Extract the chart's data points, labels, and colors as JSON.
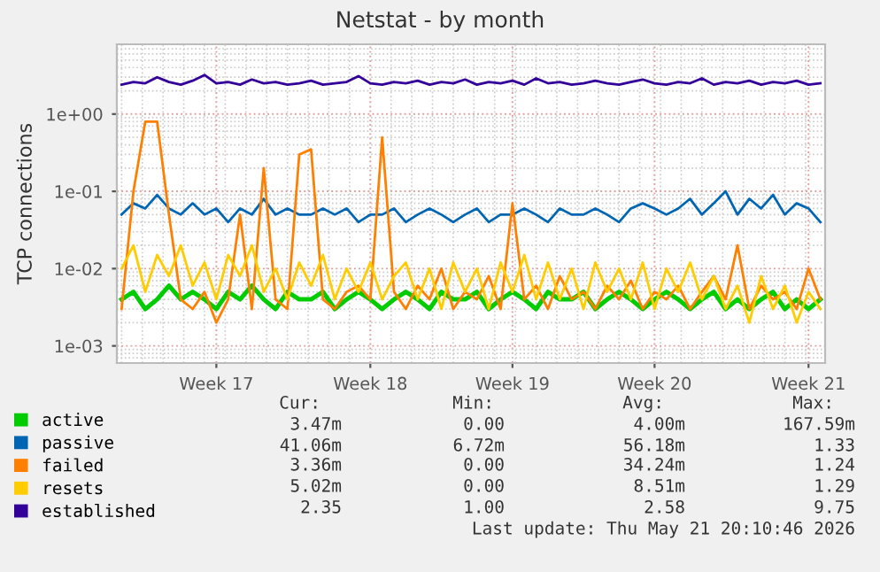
{
  "chart_data": {
    "type": "line",
    "title": "Netstat - by month",
    "ylabel": "TCP connections",
    "log": true,
    "grid": true,
    "legend": "bottom left",
    "marker": "none",
    "line_style": "solid",
    "ylim": [
      0.0006,
      8
    ],
    "yticks": [
      {
        "value": 0.001,
        "label": "1e-03"
      },
      {
        "value": 0.01,
        "label": "1e-02"
      },
      {
        "value": 0.1,
        "label": "1e-01"
      },
      {
        "value": 1,
        "label": "1e+00"
      }
    ],
    "categories": [
      null,
      null,
      null,
      null,
      null,
      null,
      null,
      null,
      "Week 17",
      null,
      null,
      null,
      null,
      null,
      null,
      null,
      null,
      null,
      null,
      null,
      null,
      "Week 18",
      null,
      null,
      null,
      null,
      null,
      null,
      null,
      null,
      null,
      null,
      null,
      "Week 19",
      null,
      null,
      null,
      null,
      null,
      null,
      null,
      null,
      null,
      null,
      null,
      "Week 20",
      null,
      null,
      null,
      null,
      null,
      null,
      null,
      null,
      null,
      null,
      null,
      null,
      "Week 21",
      null
    ],
    "series": [
      {
        "name": "active",
        "color": "#00cc00",
        "values": [
          0.004,
          0.005,
          0.003,
          0.004,
          0.006,
          0.004,
          0.005,
          0.004,
          0.003,
          0.005,
          0.004,
          0.006,
          0.004,
          0.003,
          0.005,
          0.004,
          0.004,
          0.005,
          0.003,
          0.004,
          0.005,
          0.004,
          0.003,
          0.004,
          0.005,
          0.004,
          0.003,
          0.005,
          0.004,
          0.004,
          0.005,
          0.003,
          0.004,
          0.005,
          0.004,
          0.003,
          0.005,
          0.004,
          0.004,
          0.005,
          0.003,
          0.004,
          0.005,
          0.004,
          0.003,
          0.004,
          0.005,
          0.004,
          0.003,
          0.004,
          0.005,
          0.003,
          0.004,
          0.003,
          0.004,
          0.005,
          0.003,
          0.004,
          0.003,
          0.004
        ]
      },
      {
        "name": "passive",
        "color": "#0066b3",
        "values": [
          0.05,
          0.07,
          0.06,
          0.09,
          0.06,
          0.05,
          0.07,
          0.05,
          0.06,
          0.04,
          0.06,
          0.05,
          0.08,
          0.05,
          0.06,
          0.05,
          0.05,
          0.06,
          0.05,
          0.06,
          0.04,
          0.05,
          0.05,
          0.06,
          0.04,
          0.05,
          0.06,
          0.05,
          0.04,
          0.05,
          0.06,
          0.04,
          0.05,
          0.05,
          0.06,
          0.05,
          0.04,
          0.06,
          0.05,
          0.05,
          0.06,
          0.05,
          0.04,
          0.06,
          0.07,
          0.06,
          0.05,
          0.06,
          0.08,
          0.05,
          0.07,
          0.1,
          0.05,
          0.08,
          0.06,
          0.09,
          0.05,
          0.07,
          0.06,
          0.04
        ]
      },
      {
        "name": "failed",
        "color": "#ff8000",
        "values": [
          0.003,
          0.1,
          0.8,
          0.8,
          0.05,
          0.004,
          0.003,
          0.005,
          0.002,
          0.004,
          0.05,
          0.003,
          0.2,
          0.004,
          0.003,
          0.3,
          0.35,
          0.004,
          0.003,
          0.005,
          0.006,
          0.004,
          0.5,
          0.005,
          0.003,
          0.006,
          0.004,
          0.01,
          0.003,
          0.005,
          0.004,
          0.008,
          0.003,
          0.07,
          0.004,
          0.006,
          0.003,
          0.008,
          0.004,
          0.005,
          0.003,
          0.006,
          0.004,
          0.007,
          0.003,
          0.005,
          0.004,
          0.006,
          0.003,
          0.005,
          0.008,
          0.004,
          0.02,
          0.003,
          0.006,
          0.004,
          0.005,
          0.003,
          0.01,
          0.004
        ]
      },
      {
        "name": "resets",
        "color": "#ffcc00",
        "values": [
          0.01,
          0.02,
          0.005,
          0.015,
          0.008,
          0.02,
          0.006,
          0.012,
          0.004,
          0.015,
          0.008,
          0.02,
          0.005,
          0.01,
          0.004,
          0.012,
          0.006,
          0.015,
          0.004,
          0.01,
          0.005,
          0.012,
          0.004,
          0.008,
          0.012,
          0.004,
          0.01,
          0.003,
          0.012,
          0.005,
          0.01,
          0.003,
          0.012,
          0.005,
          0.015,
          0.004,
          0.012,
          0.004,
          0.01,
          0.003,
          0.012,
          0.005,
          0.01,
          0.004,
          0.012,
          0.003,
          0.01,
          0.005,
          0.012,
          0.004,
          0.008,
          0.003,
          0.006,
          0.002,
          0.008,
          0.003,
          0.006,
          0.002,
          0.005,
          0.003
        ]
      },
      {
        "name": "established",
        "color": "#330099",
        "values": [
          2.4,
          2.6,
          2.5,
          3.0,
          2.6,
          2.4,
          2.7,
          3.2,
          2.5,
          2.6,
          2.4,
          2.8,
          2.5,
          2.6,
          2.4,
          2.5,
          2.7,
          2.4,
          2.5,
          2.6,
          3.1,
          2.5,
          2.4,
          2.6,
          2.5,
          2.7,
          2.4,
          2.6,
          2.5,
          2.8,
          2.4,
          2.6,
          2.5,
          2.7,
          2.4,
          2.9,
          2.5,
          2.6,
          2.4,
          2.5,
          2.7,
          2.5,
          2.4,
          2.6,
          2.8,
          2.5,
          2.4,
          2.6,
          2.5,
          2.9,
          2.4,
          2.6,
          2.5,
          2.7,
          2.4,
          2.6,
          2.5,
          2.7,
          2.4,
          2.5
        ]
      }
    ],
    "annotations": [
      "Cur:",
      "Min:",
      "Avg:",
      "Max:",
      "3.47m",
      "0.00",
      "4.00m",
      "167.59m",
      "41.06m",
      "6.72m",
      "56.18m",
      "1.33",
      "3.36m",
      "0.00",
      "34.24m",
      "1.24",
      "5.02m",
      "0.00",
      "8.51m",
      "1.29",
      "2.35",
      "1.00",
      "2.58",
      "9.75",
      "Last update: Thu May 21 20:10:46 2026"
    ]
  }
}
